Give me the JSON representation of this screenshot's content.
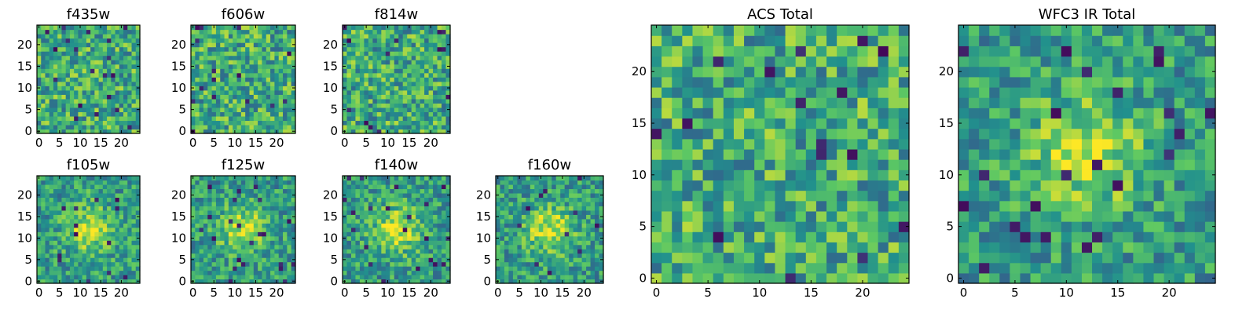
{
  "figure": {
    "colormap": "viridis",
    "colormap_stops": [
      "#440154",
      "#3b528b",
      "#21908d",
      "#5dc863",
      "#fde725"
    ]
  },
  "chart_data": [
    {
      "type": "heatmap",
      "title": "f435w",
      "grid_size": [
        25,
        25
      ],
      "xlim": [
        0,
        24
      ],
      "ylim": [
        0,
        24
      ],
      "xticks": [
        0,
        5,
        10,
        15,
        20
      ],
      "yticks": [
        0,
        5,
        10,
        15,
        20
      ],
      "grid": false,
      "structure": "noise"
    },
    {
      "type": "heatmap",
      "title": "f606w",
      "grid_size": [
        25,
        25
      ],
      "xlim": [
        0,
        24
      ],
      "ylim": [
        0,
        24
      ],
      "xticks": [
        0,
        5,
        10,
        15,
        20
      ],
      "yticks": [
        0,
        5,
        10,
        15,
        20
      ],
      "grid": false,
      "structure": "noise"
    },
    {
      "type": "heatmap",
      "title": "f814w",
      "grid_size": [
        25,
        25
      ],
      "xlim": [
        0,
        24
      ],
      "ylim": [
        0,
        24
      ],
      "xticks": [
        0,
        5,
        10,
        15,
        20
      ],
      "yticks": [
        0,
        5,
        10,
        15,
        20
      ],
      "grid": false,
      "structure": "noise"
    },
    {
      "type": "heatmap",
      "title": "f105w",
      "grid_size": [
        25,
        25
      ],
      "xlim": [
        0,
        24
      ],
      "ylim": [
        0,
        24
      ],
      "xticks": [
        0,
        5,
        10,
        15,
        20
      ],
      "yticks": [
        0,
        5,
        10,
        15,
        20
      ],
      "grid": false,
      "structure": "central-source"
    },
    {
      "type": "heatmap",
      "title": "f125w",
      "grid_size": [
        25,
        25
      ],
      "xlim": [
        0,
        24
      ],
      "ylim": [
        0,
        24
      ],
      "xticks": [
        0,
        5,
        10,
        15,
        20
      ],
      "yticks": [
        0,
        5,
        10,
        15,
        20
      ],
      "grid": false,
      "structure": "central-source"
    },
    {
      "type": "heatmap",
      "title": "f140w",
      "grid_size": [
        25,
        25
      ],
      "xlim": [
        0,
        24
      ],
      "ylim": [
        0,
        24
      ],
      "xticks": [
        0,
        5,
        10,
        15,
        20
      ],
      "yticks": [
        0,
        5,
        10,
        15,
        20
      ],
      "grid": false,
      "structure": "central-source"
    },
    {
      "type": "heatmap",
      "title": "f160w",
      "grid_size": [
        25,
        25
      ],
      "xlim": [
        0,
        24
      ],
      "ylim": [
        0,
        24
      ],
      "xticks": [
        0,
        5,
        10,
        15,
        20
      ],
      "yticks": [
        0,
        5,
        10,
        15,
        20
      ],
      "grid": false,
      "structure": "central-source"
    },
    {
      "type": "heatmap",
      "title": "ACS Total",
      "grid_size": [
        25,
        25
      ],
      "xlim": [
        0,
        24
      ],
      "ylim": [
        0,
        24
      ],
      "xticks": [
        0,
        5,
        10,
        15,
        20
      ],
      "yticks": [
        0,
        5,
        10,
        15,
        20
      ],
      "grid": false,
      "structure": "noise"
    },
    {
      "type": "heatmap",
      "title": "WFC3 IR Total",
      "grid_size": [
        25,
        25
      ],
      "xlim": [
        0,
        24
      ],
      "ylim": [
        0,
        24
      ],
      "xticks": [
        0,
        5,
        10,
        15,
        20
      ],
      "yticks": [
        0,
        5,
        10,
        15,
        20
      ],
      "grid": false,
      "structure": "central-source"
    }
  ]
}
